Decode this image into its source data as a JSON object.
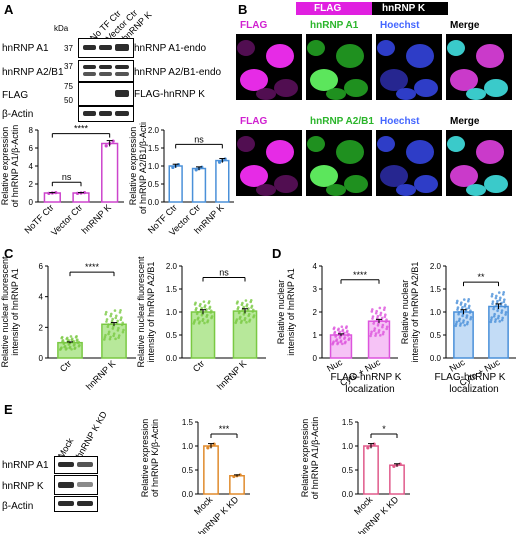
{
  "panels": {
    "A": "A",
    "B": "B",
    "C": "C",
    "D": "D",
    "E": "E"
  },
  "panelA": {
    "kda": "kDa",
    "lanes": [
      "No TF Ctr",
      "Vector Ctr",
      "hnRNP K"
    ],
    "rows": [
      {
        "left": "hnRNP A1",
        "mw": "37",
        "right": "hnRNP A1-endo"
      },
      {
        "left": "hnRNP A2/B1",
        "mw": "37",
        "right": "hnRNP A2/B1-endo"
      },
      {
        "left": "FLAG",
        "mw": "75",
        "mw2": "50",
        "right": "FLAG-hnRNP K"
      },
      {
        "left": "β-Actin",
        "mw": "",
        "right": ""
      }
    ],
    "sig": "****",
    "ns1": "ns",
    "ns2": "ns"
  },
  "panelB": {
    "legend_flag": "FLAG",
    "legend_k": "hnRNP K",
    "row1": [
      "FLAG",
      "hnRNP A1",
      "Hoechst",
      "Merge"
    ],
    "row2": [
      "FLAG",
      "hnRNP A2/B1",
      "Hoechst",
      "Merge"
    ]
  },
  "panelD": {
    "sig1": "****",
    "sig2": "**",
    "xlabel1": "FLAG-hnRNP K",
    "xlabel2": "localization"
  },
  "panelE": {
    "lanes": [
      "Mock",
      "hnRNP K KD"
    ],
    "rows": [
      "hnRNP A1",
      "hnRNP K",
      "β-Actin"
    ],
    "sig1": "***",
    "sig2": "*"
  },
  "chart_data": [
    {
      "type": "bar",
      "panel": "A-left",
      "categories": [
        "NoTF Ctr",
        "Vector Ctr",
        "hnRNP K"
      ],
      "values": [
        1.0,
        1.0,
        6.5
      ],
      "ylabel": "Relative expression of hnRNP A1/β-Actin",
      "yticks": [
        0,
        2,
        4,
        6,
        8
      ],
      "ylim": [
        0,
        8
      ],
      "color": "#cc44cc",
      "annotations": [
        "ns",
        "****"
      ]
    },
    {
      "type": "bar",
      "panel": "A-right",
      "categories": [
        "NoTF Ctr",
        "Vector Ctr",
        "hnRNP K"
      ],
      "values": [
        1.0,
        0.93,
        1.15
      ],
      "ylabel": "Relative expression of hnRNP A2/B1/β-Actin",
      "yticks": [
        0.0,
        0.5,
        1.0,
        1.5,
        2.0
      ],
      "ylim": [
        0,
        2.0
      ],
      "color": "#4a90d9",
      "annotations": [
        "ns"
      ]
    },
    {
      "type": "bar",
      "panel": "C-left",
      "categories": [
        "Ctr",
        "hnRNP K"
      ],
      "values": [
        1.0,
        2.2
      ],
      "ylabel": "Relative nuclear fluorescent intensity of hnRNP A1",
      "yticks": [
        0,
        2,
        4,
        6
      ],
      "ylim": [
        0,
        6
      ],
      "color": "#7ac943",
      "annotations": [
        "****"
      ]
    },
    {
      "type": "bar",
      "panel": "C-right",
      "categories": [
        "Ctr",
        "hnRNP K"
      ],
      "values": [
        1.0,
        1.02
      ],
      "ylabel": "Relative nuclear fluorescent intensity of hnRNP A2/B1",
      "yticks": [
        0.0,
        0.5,
        1.0,
        1.5,
        2.0
      ],
      "ylim": [
        0,
        2.0
      ],
      "color": "#7ac943",
      "annotations": [
        "ns"
      ]
    },
    {
      "type": "bar",
      "panel": "D-left",
      "categories": [
        "Nuc",
        "Cyto + Nuc"
      ],
      "values": [
        1.0,
        1.6
      ],
      "ylabel": "Relative nuclear intensity of hnRNP A1",
      "yticks": [
        0,
        1,
        2,
        3,
        4
      ],
      "ylim": [
        0,
        4
      ],
      "color": "#dd55dd",
      "annotations": [
        "****"
      ]
    },
    {
      "type": "bar",
      "panel": "D-right",
      "categories": [
        "Nuc",
        "Cyto + Nuc"
      ],
      "values": [
        1.0,
        1.12
      ],
      "ylabel": "Relative nuclear intensity of hnRNP A2/B1",
      "yticks": [
        0.0,
        0.5,
        1.0,
        1.5,
        2.0
      ],
      "ylim": [
        0,
        2.0
      ],
      "color": "#4a90d9",
      "annotations": [
        "**"
      ]
    },
    {
      "type": "bar",
      "panel": "E-mid",
      "categories": [
        "Mock",
        "hnRNP K KD"
      ],
      "values": [
        1.0,
        0.38
      ],
      "ylabel": "Relative expression of hnRNP K/β-Actin",
      "yticks": [
        0.0,
        0.5,
        1.0,
        1.5
      ],
      "ylim": [
        0,
        1.5
      ],
      "color": "#e08a2c",
      "annotations": [
        "***"
      ]
    },
    {
      "type": "bar",
      "panel": "E-right",
      "categories": [
        "Mock",
        "hnRNP K KD"
      ],
      "values": [
        1.0,
        0.6
      ],
      "ylabel": "Relative expression of hnRNP A1/β-Actin",
      "yticks": [
        0.0,
        0.5,
        1.0,
        1.5
      ],
      "ylim": [
        0,
        1.5
      ],
      "color": "#e05a8a",
      "annotations": [
        "*"
      ]
    }
  ]
}
